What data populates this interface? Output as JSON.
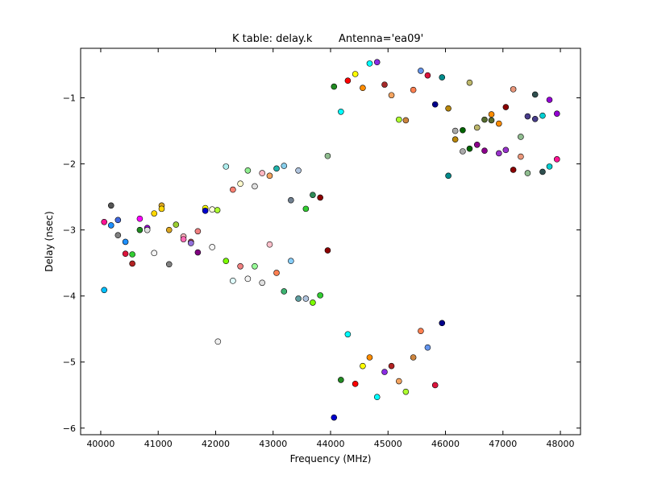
{
  "chart_data": {
    "type": "scatter",
    "title": "K table: delay.k",
    "subtitle": "Antenna='ea09'",
    "xlabel": "Frequency (MHz)",
    "ylabel": "Delay (nsec)",
    "xlim": [
      39650,
      48350
    ],
    "ylim": [
      -6.1,
      -0.25
    ],
    "xticks": [
      40000,
      41000,
      42000,
      43000,
      44000,
      45000,
      46000,
      47000,
      48000
    ],
    "yticks": [
      -1,
      -2,
      -3,
      -4,
      -5,
      -6
    ],
    "xtick_labels": [
      "40000",
      "41000",
      "42000",
      "43000",
      "44000",
      "45000",
      "46000",
      "47000",
      "48000"
    ],
    "ytick_labels": [
      "−1",
      "−2",
      "−3",
      "−4",
      "−5",
      "−6"
    ],
    "grid": false,
    "legend": "none",
    "points": [
      {
        "x": 40060,
        "y": -2.88,
        "color": "#ff1493"
      },
      {
        "x": 40060,
        "y": -3.91,
        "color": "#00bfff"
      },
      {
        "x": 40180,
        "y": -2.63,
        "color": "#555555"
      },
      {
        "x": 40180,
        "y": -2.93,
        "color": "#1e90ff"
      },
      {
        "x": 40300,
        "y": -2.85,
        "color": "#4169e1"
      },
      {
        "x": 40300,
        "y": -3.08,
        "color": "#808080"
      },
      {
        "x": 40430,
        "y": -3.18,
        "color": "#1e90ff"
      },
      {
        "x": 40430,
        "y": -3.36,
        "color": "#dc143c"
      },
      {
        "x": 40550,
        "y": -3.37,
        "color": "#32cd32"
      },
      {
        "x": 40550,
        "y": -3.51,
        "color": "#b22222"
      },
      {
        "x": 40680,
        "y": -2.83,
        "color": "#ff00ff"
      },
      {
        "x": 40680,
        "y": -3.0,
        "color": "#228b22"
      },
      {
        "x": 40810,
        "y": -2.97,
        "color": "#9400d3"
      },
      {
        "x": 40810,
        "y": -3.0,
        "color": "#e0e0e0"
      },
      {
        "x": 40930,
        "y": -2.75,
        "color": "#ffd700"
      },
      {
        "x": 40930,
        "y": -3.35,
        "color": "#f5f5f5"
      },
      {
        "x": 41060,
        "y": -2.63,
        "color": "#daa520"
      },
      {
        "x": 41060,
        "y": -2.68,
        "color": "#ffd700"
      },
      {
        "x": 41190,
        "y": -3.0,
        "color": "#daa520"
      },
      {
        "x": 41190,
        "y": -3.52,
        "color": "#808080"
      },
      {
        "x": 41310,
        "y": -2.92,
        "color": "#9acd32"
      },
      {
        "x": 41440,
        "y": -3.1,
        "color": "#ffb6c1"
      },
      {
        "x": 41440,
        "y": -3.14,
        "color": "#ff69b4"
      },
      {
        "x": 41570,
        "y": -3.18,
        "color": "#cd5c5c"
      },
      {
        "x": 41570,
        "y": -3.2,
        "color": "#9370db"
      },
      {
        "x": 41690,
        "y": -3.02,
        "color": "#f08080"
      },
      {
        "x": 41690,
        "y": -3.34,
        "color": "#800080"
      },
      {
        "x": 41820,
        "y": -2.67,
        "color": "#ffff00"
      },
      {
        "x": 41820,
        "y": -2.71,
        "color": "#0000cd"
      },
      {
        "x": 41940,
        "y": -2.69,
        "color": "#ffffe0"
      },
      {
        "x": 41940,
        "y": -3.26,
        "color": "#f5f5f5"
      },
      {
        "x": 42030,
        "y": -2.7,
        "color": "#adff2f"
      },
      {
        "x": 42040,
        "y": -4.69,
        "color": "#f0f0f0"
      },
      {
        "x": 42180,
        "y": -2.04,
        "color": "#afeeee"
      },
      {
        "x": 42180,
        "y": -3.47,
        "color": "#7cfc00"
      },
      {
        "x": 42300,
        "y": -2.39,
        "color": "#fa8072"
      },
      {
        "x": 42300,
        "y": -3.77,
        "color": "#e0ffff"
      },
      {
        "x": 42430,
        "y": -2.3,
        "color": "#fffacd"
      },
      {
        "x": 42430,
        "y": -3.55,
        "color": "#f08080"
      },
      {
        "x": 42560,
        "y": -2.1,
        "color": "#90ee90"
      },
      {
        "x": 42560,
        "y": -3.74,
        "color": "#f5f5f5"
      },
      {
        "x": 42680,
        "y": -2.34,
        "color": "#e0e0e0"
      },
      {
        "x": 42680,
        "y": -3.55,
        "color": "#98fb98"
      },
      {
        "x": 42810,
        "y": -2.14,
        "color": "#ffb6c1"
      },
      {
        "x": 42810,
        "y": -3.8,
        "color": "#e0e0e0"
      },
      {
        "x": 42940,
        "y": -2.18,
        "color": "#f4a460"
      },
      {
        "x": 42940,
        "y": -3.22,
        "color": "#ffc0cb"
      },
      {
        "x": 43060,
        "y": -2.07,
        "color": "#20b2aa"
      },
      {
        "x": 43060,
        "y": -3.65,
        "color": "#ff7f50"
      },
      {
        "x": 43190,
        "y": -2.03,
        "color": "#87ceeb"
      },
      {
        "x": 43190,
        "y": -3.93,
        "color": "#3cb371"
      },
      {
        "x": 43310,
        "y": -2.55,
        "color": "#708090"
      },
      {
        "x": 43310,
        "y": -3.47,
        "color": "#87cefa"
      },
      {
        "x": 43440,
        "y": -2.1,
        "color": "#b0c4de"
      },
      {
        "x": 43440,
        "y": -4.04,
        "color": "#5f9ea0"
      },
      {
        "x": 43570,
        "y": -2.68,
        "color": "#32cd32"
      },
      {
        "x": 43570,
        "y": -4.04,
        "color": "#b0c4de"
      },
      {
        "x": 43690,
        "y": -2.47,
        "color": "#2e8b57"
      },
      {
        "x": 43690,
        "y": -4.1,
        "color": "#7cfc00"
      },
      {
        "x": 43820,
        "y": -2.51,
        "color": "#8b0000"
      },
      {
        "x": 43820,
        "y": -3.99,
        "color": "#32cd32"
      },
      {
        "x": 43950,
        "y": -1.88,
        "color": "#8fbc8f"
      },
      {
        "x": 43950,
        "y": -3.31,
        "color": "#8b0000"
      },
      {
        "x": 44060,
        "y": -0.83,
        "color": "#228b22"
      },
      {
        "x": 44060,
        "y": -5.84,
        "color": "#0000cd"
      },
      {
        "x": 44180,
        "y": -1.21,
        "color": "#00ffff"
      },
      {
        "x": 44180,
        "y": -5.27,
        "color": "#228b22"
      },
      {
        "x": 44300,
        "y": -0.74,
        "color": "#ff0000"
      },
      {
        "x": 44300,
        "y": -4.58,
        "color": "#00ffff"
      },
      {
        "x": 44430,
        "y": -0.64,
        "color": "#ffff00"
      },
      {
        "x": 44430,
        "y": -5.33,
        "color": "#ff0000"
      },
      {
        "x": 44560,
        "y": -0.85,
        "color": "#ff8c00"
      },
      {
        "x": 44560,
        "y": -5.06,
        "color": "#ffff00"
      },
      {
        "x": 44680,
        "y": -0.48,
        "color": "#00ffff"
      },
      {
        "x": 44680,
        "y": -4.93,
        "color": "#ff8c00"
      },
      {
        "x": 44810,
        "y": -0.46,
        "color": "#8a2be2"
      },
      {
        "x": 44810,
        "y": -5.53,
        "color": "#00ffff"
      },
      {
        "x": 44940,
        "y": -0.8,
        "color": "#a52a2a"
      },
      {
        "x": 44940,
        "y": -5.15,
        "color": "#8a2be2"
      },
      {
        "x": 45060,
        "y": -0.96,
        "color": "#f4a460"
      },
      {
        "x": 45060,
        "y": -5.06,
        "color": "#b22222"
      },
      {
        "x": 45190,
        "y": -1.33,
        "color": "#adff2f"
      },
      {
        "x": 45190,
        "y": -5.29,
        "color": "#f4a460"
      },
      {
        "x": 45310,
        "y": -1.34,
        "color": "#cd853f"
      },
      {
        "x": 45310,
        "y": -5.45,
        "color": "#adff2f"
      },
      {
        "x": 45440,
        "y": -0.88,
        "color": "#ff7f50"
      },
      {
        "x": 45440,
        "y": -4.93,
        "color": "#cd853f"
      },
      {
        "x": 45570,
        "y": -0.59,
        "color": "#6495ed"
      },
      {
        "x": 45570,
        "y": -4.53,
        "color": "#ff7f50"
      },
      {
        "x": 45690,
        "y": -0.66,
        "color": "#dc143c"
      },
      {
        "x": 45690,
        "y": -4.78,
        "color": "#6495ed"
      },
      {
        "x": 45820,
        "y": -1.1,
        "color": "#00008b"
      },
      {
        "x": 45820,
        "y": -5.35,
        "color": "#dc143c"
      },
      {
        "x": 45940,
        "y": -0.69,
        "color": "#008b8b"
      },
      {
        "x": 45940,
        "y": -4.41,
        "color": "#00008b"
      },
      {
        "x": 46050,
        "y": -1.16,
        "color": "#b8860b"
      },
      {
        "x": 46050,
        "y": -2.18,
        "color": "#008b8b"
      },
      {
        "x": 46170,
        "y": -1.5,
        "color": "#a9a9a9"
      },
      {
        "x": 46170,
        "y": -1.63,
        "color": "#b8860b"
      },
      {
        "x": 46300,
        "y": -1.49,
        "color": "#006400"
      },
      {
        "x": 46300,
        "y": -1.81,
        "color": "#a9a9a9"
      },
      {
        "x": 46420,
        "y": -0.77,
        "color": "#bdb76b"
      },
      {
        "x": 46420,
        "y": -1.77,
        "color": "#006400"
      },
      {
        "x": 46550,
        "y": -1.45,
        "color": "#bdb76b"
      },
      {
        "x": 46550,
        "y": -1.71,
        "color": "#8b008b"
      },
      {
        "x": 46680,
        "y": -1.33,
        "color": "#556b2f"
      },
      {
        "x": 46680,
        "y": -1.8,
        "color": "#8b008b"
      },
      {
        "x": 46800,
        "y": -1.25,
        "color": "#ff8c00"
      },
      {
        "x": 46800,
        "y": -1.34,
        "color": "#556b2f"
      },
      {
        "x": 46930,
        "y": -1.39,
        "color": "#ff8c00"
      },
      {
        "x": 46930,
        "y": -1.84,
        "color": "#9932cc"
      },
      {
        "x": 47050,
        "y": -1.14,
        "color": "#8b0000"
      },
      {
        "x": 47050,
        "y": -1.79,
        "color": "#9932cc"
      },
      {
        "x": 47180,
        "y": -0.87,
        "color": "#e9967a"
      },
      {
        "x": 47180,
        "y": -2.09,
        "color": "#8b0000"
      },
      {
        "x": 47310,
        "y": -1.59,
        "color": "#8fbc8f"
      },
      {
        "x": 47310,
        "y": -1.89,
        "color": "#e9967a"
      },
      {
        "x": 47430,
        "y": -1.28,
        "color": "#483d8b"
      },
      {
        "x": 47430,
        "y": -2.14,
        "color": "#8fbc8f"
      },
      {
        "x": 47560,
        "y": -0.95,
        "color": "#2f4f4f"
      },
      {
        "x": 47560,
        "y": -1.32,
        "color": "#483d8b"
      },
      {
        "x": 47690,
        "y": -1.27,
        "color": "#00ced1"
      },
      {
        "x": 47690,
        "y": -2.12,
        "color": "#2f4f4f"
      },
      {
        "x": 47810,
        "y": -1.03,
        "color": "#9400d3"
      },
      {
        "x": 47810,
        "y": -2.04,
        "color": "#00ced1"
      },
      {
        "x": 47940,
        "y": -1.24,
        "color": "#9400d3"
      },
      {
        "x": 47940,
        "y": -1.93,
        "color": "#ff1493"
      }
    ]
  }
}
